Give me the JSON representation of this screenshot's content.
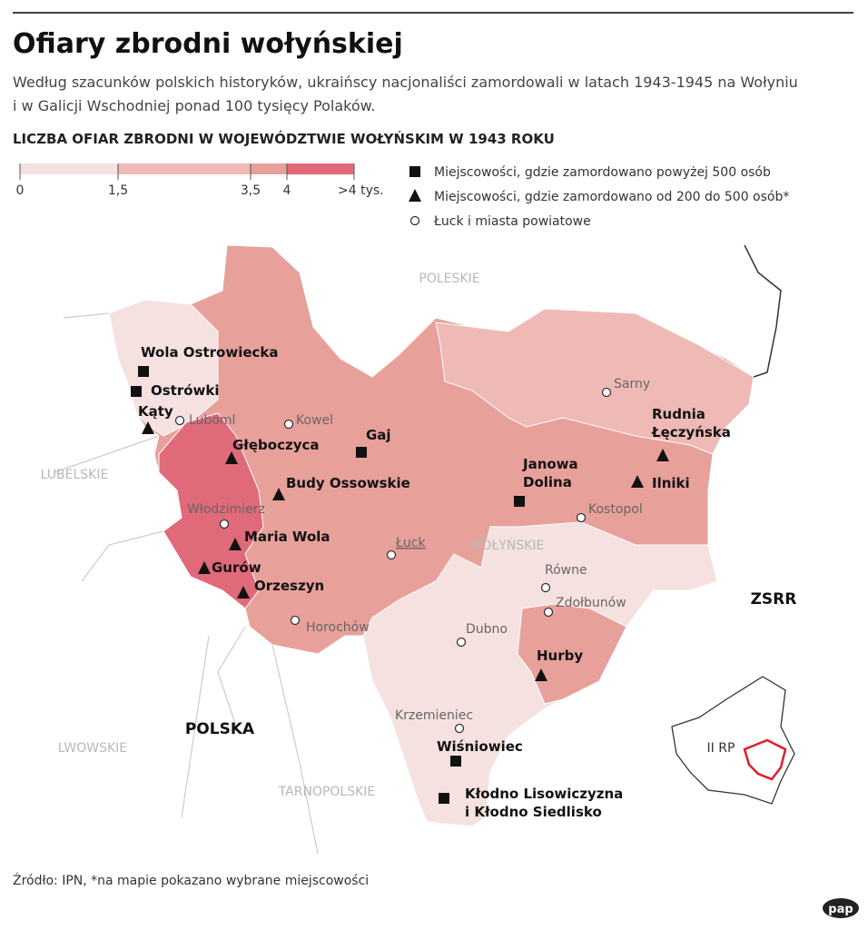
{
  "header": {
    "title": "Ofiary zbrodni wołyńskiej",
    "subtitle": [
      "Według szacunków polskich historyków, ukraińscy nacjonaliści zamordowali w latach 1943-1945 na Wołyniu",
      "i w Galicji Wschodniej ponad 100 tysięcy Polaków."
    ],
    "heading": "LICZBA OFIAR ZBRODNI W WOJEWÓDZTWIE WOŁYŃSKIM W 1943 ROKU"
  },
  "legend": {
    "scale": {
      "ticks": [
        "0",
        "1,5",
        "3,5",
        "4",
        ">4 tys."
      ],
      "colors": [
        "#f6e1e1",
        "#efb9b6",
        "#e8a09b",
        "#e06a7a"
      ]
    },
    "markers": [
      {
        "marker": "square",
        "label": "Miejscowości, gdzie zamordowano powyżej 500 osób"
      },
      {
        "marker": "triangle",
        "label": "Miejscowości, gdzie zamordowano od 200 do 500 osób*"
      },
      {
        "marker": "circle",
        "label": "Łuck i miasta powiatowe"
      }
    ]
  },
  "regions": [
    "POLESKIE",
    "LUBELSKIE",
    "WOŁYŃSKIE",
    "LWOWSKIE",
    "TARNOPOLSKIE",
    "POLSKA",
    "ZSRR",
    "II RP"
  ],
  "places": [
    {
      "name": [
        "Wola Ostrowiecka"
      ],
      "marker": "square"
    },
    {
      "name": [
        "Ostrówki"
      ],
      "marker": "square"
    },
    {
      "name": [
        "Kąty"
      ],
      "marker": "triangle"
    },
    {
      "name": [
        "Luboml"
      ],
      "marker": "circle"
    },
    {
      "name": [
        "Kowel"
      ],
      "marker": "circle"
    },
    {
      "name": [
        "Gaj"
      ],
      "marker": "square"
    },
    {
      "name": [
        "Głęboczyca"
      ],
      "marker": "triangle"
    },
    {
      "name": [
        "Budy Ossowskie"
      ],
      "marker": "triangle"
    },
    {
      "name": [
        "Włodzimierz"
      ],
      "marker": "circle"
    },
    {
      "name": [
        "Maria Wola"
      ],
      "marker": "triangle"
    },
    {
      "name": [
        "Gurów"
      ],
      "marker": "triangle"
    },
    {
      "name": [
        "Orzeszyn"
      ],
      "marker": "triangle"
    },
    {
      "name": [
        "Horochów"
      ],
      "marker": "circle"
    },
    {
      "name": [
        "Łuck"
      ],
      "marker": "circle"
    },
    {
      "name": [
        "Sarny"
      ],
      "marker": "circle"
    },
    {
      "name": [
        "Rudnia",
        "Łęczyńska"
      ],
      "marker": "triangle"
    },
    {
      "name": [
        "Ilniki"
      ],
      "marker": "triangle"
    },
    {
      "name": [
        "Janowa",
        "Dolina"
      ],
      "marker": "square"
    },
    {
      "name": [
        "Kostopol"
      ],
      "marker": "circle"
    },
    {
      "name": [
        "Równe"
      ],
      "marker": "circle"
    },
    {
      "name": [
        "Zdołbunów"
      ],
      "marker": "circle"
    },
    {
      "name": [
        "Dubno"
      ],
      "marker": "circle"
    },
    {
      "name": [
        "Hurby"
      ],
      "marker": "triangle"
    },
    {
      "name": [
        "Krzemieniec"
      ],
      "marker": "circle"
    },
    {
      "name": [
        "Wiśniowiec"
      ],
      "marker": "square"
    },
    {
      "name": [
        "Kłodno Lisowiczyzna",
        "i Kłodno Siedlisko"
      ],
      "marker": "square"
    }
  ],
  "footer": {
    "source": "Źródło: IPN, *na mapie pokazano wybrane miejscowości",
    "logo": "pap"
  }
}
